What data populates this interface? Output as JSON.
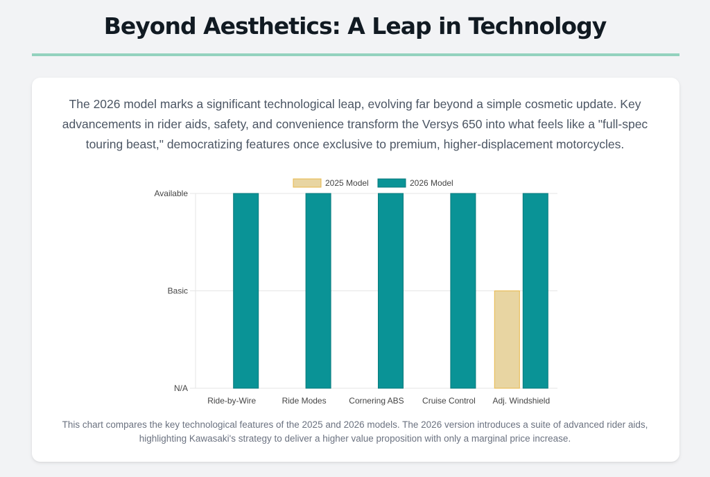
{
  "header": {
    "title": "Beyond Aesthetics: A Leap in Technology"
  },
  "intro_text": "The 2026 model marks a significant technological leap, evolving far beyond a simple cosmetic update. Key advancements in rider aids, safety, and convenience transform the Versys 650 into what feels like a \"full-spec touring beast,\" democratizing features once exclusive to premium, higher-displacement motorcycles.",
  "caption_text": "This chart compares the key technological features of the 2025 and 2026 models. The 2026 version introduces a suite of advanced rider aids, highlighting Kawasaki's strategy to deliver a higher value proposition with only a marginal price increase.",
  "colors": {
    "accent_rule": "#93d2be",
    "series_2025_fill": "#e8d5a2",
    "series_2025_border": "#e8b84a",
    "series_2026_fill": "#0a9396",
    "series_2026_border": "#087a7c"
  },
  "chart_data": {
    "type": "bar",
    "title": "",
    "xlabel": "",
    "ylabel": "",
    "categories": [
      "Ride-by-Wire",
      "Ride Modes",
      "Cornering ABS",
      "Cruise Control",
      "Adj. Windshield"
    ],
    "y_tick_labels": [
      "N/A",
      "Basic",
      "Available"
    ],
    "ylim": [
      0,
      2
    ],
    "grid": true,
    "legend_position": "top-center",
    "series": [
      {
        "name": "2025 Model",
        "values": [
          0,
          0,
          0,
          0,
          1
        ]
      },
      {
        "name": "2026 Model",
        "values": [
          2,
          2,
          2,
          2,
          2
        ]
      }
    ]
  }
}
